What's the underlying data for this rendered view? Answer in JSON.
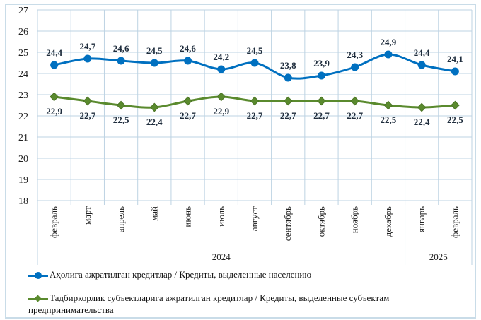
{
  "chart_data": {
    "type": "line",
    "categories": [
      "февраль",
      "март",
      "апрель",
      "май",
      "июнь",
      "июль",
      "август",
      "сентябрь",
      "октябрь",
      "ноябрь",
      "декабрь",
      "январь",
      "февраль"
    ],
    "year_groups": [
      {
        "label": "2024",
        "count": 11
      },
      {
        "label": "2025",
        "count": 2
      }
    ],
    "ylim": [
      18,
      27
    ],
    "yticks": [
      18,
      19,
      20,
      21,
      22,
      23,
      24,
      25,
      26,
      27
    ],
    "grid": true,
    "legend_position": "bottom",
    "series": [
      {
        "name": "Аҳолига ажратилган кредитлар / Кредиты, выделенные населению",
        "color": "#0070C0",
        "marker": "circle",
        "values": [
          24.4,
          24.7,
          24.6,
          24.5,
          24.6,
          24.2,
          24.5,
          23.8,
          23.9,
          24.3,
          24.9,
          24.4,
          24.1
        ],
        "labels": [
          "24,4",
          "24,7",
          "24,6",
          "24,5",
          "24,6",
          "24,2",
          "24,5",
          "23,8",
          "23,9",
          "24,3",
          "24,9",
          "24,4",
          "24,1"
        ]
      },
      {
        "name": "Тадбиркорлик субъектларига ажратилган кредитлар / Кредиты, выделенные субъектам предпринимательства",
        "color": "#5A8A2E",
        "marker": "diamond",
        "values": [
          22.9,
          22.7,
          22.5,
          22.4,
          22.7,
          22.9,
          22.7,
          22.7,
          22.7,
          22.7,
          22.5,
          22.4,
          22.5
        ],
        "labels": [
          "22,9",
          "22,7",
          "22,5",
          "22,4",
          "22,7",
          "22,9",
          "22,7",
          "22,7",
          "22,7",
          "22,7",
          "22,5",
          "22,4",
          "22,5"
        ]
      }
    ]
  }
}
